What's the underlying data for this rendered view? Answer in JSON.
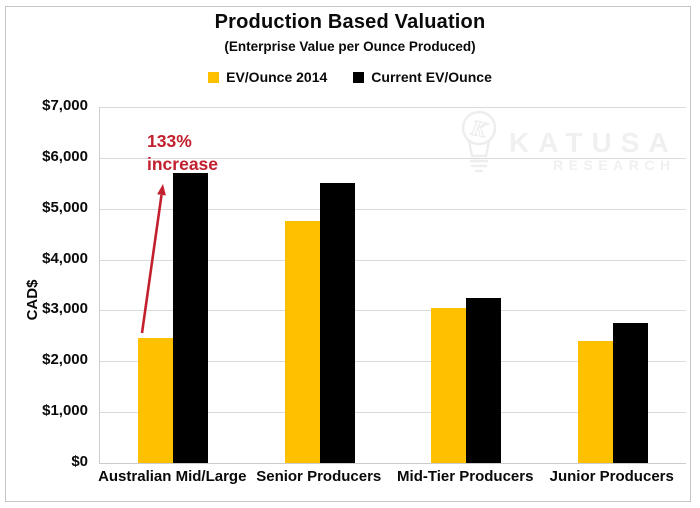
{
  "chart_data": {
    "type": "bar",
    "title": "Production Based Valuation",
    "subtitle": "(Enterprise Value per Ounce Produced)",
    "ylabel": "CAD$",
    "ylim": [
      0,
      7000
    ],
    "ytick_step": 1000,
    "ytick_labels": [
      "$0",
      "$1,000",
      "$2,000",
      "$3,000",
      "$4,000",
      "$5,000",
      "$6,000",
      "$7,000"
    ],
    "categories": [
      "Australian Mid/Large",
      "Senior Producers",
      "Mid-Tier Producers",
      "Junior Producers"
    ],
    "series": [
      {
        "name": "EV/Ounce 2014",
        "color": "#FFC000",
        "values": [
          2450,
          4750,
          3050,
          2400
        ]
      },
      {
        "name": "Current EV/Ounce",
        "color": "#000000",
        "values": [
          5700,
          5500,
          3250,
          2750
        ]
      }
    ],
    "grid": true,
    "gridline_color": "#dadada",
    "legend_position": "top",
    "annotation": {
      "lines": [
        "133%",
        "increase"
      ],
      "color": "#C2202E"
    }
  },
  "watermark": {
    "brand": "KATUSA",
    "sub": "RESEARCH",
    "icon": "lightbulb-k-icon",
    "color": "#f0f0f0"
  }
}
